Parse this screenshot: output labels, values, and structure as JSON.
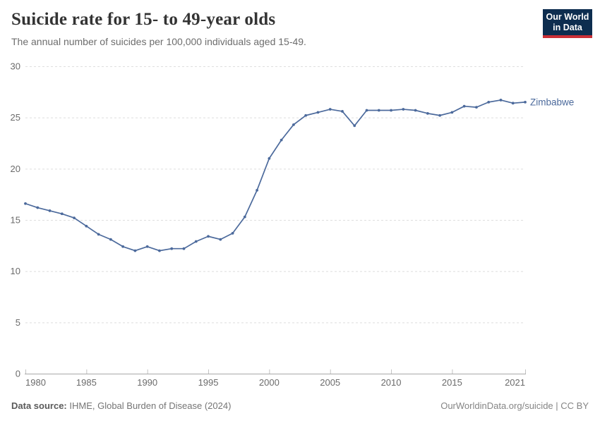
{
  "header": {
    "title": "Suicide rate for 15- to 49-year olds",
    "subtitle": "The annual number of suicides per 100,000 individuals aged 15-49.",
    "logo": {
      "line1": "Our World",
      "line2": "in Data",
      "bg_color": "#0d2d4f",
      "stripe_color": "#cb2f36"
    }
  },
  "chart_data": {
    "type": "line",
    "title": "Suicide rate for 15- to 49-year olds",
    "subtitle": "The annual number of suicides per 100,000 individuals aged 15-49.",
    "xlabel": "",
    "ylabel": "",
    "xlim": [
      1980,
      2021
    ],
    "ylim": [
      0,
      30
    ],
    "x_ticks": [
      1980,
      1985,
      1990,
      1995,
      2000,
      2005,
      2010,
      2015,
      2021
    ],
    "y_ticks": [
      0,
      5,
      10,
      15,
      20,
      25,
      30
    ],
    "grid": "horizontal-dashed",
    "legend_position": "end-of-line-label",
    "series": [
      {
        "name": "Zimbabwe",
        "color": "#4c6a9c",
        "x": [
          1980,
          1981,
          1982,
          1983,
          1984,
          1985,
          1986,
          1987,
          1988,
          1989,
          1990,
          1991,
          1992,
          1993,
          1994,
          1995,
          1996,
          1997,
          1998,
          1999,
          2000,
          2001,
          2002,
          2003,
          2004,
          2005,
          2006,
          2007,
          2008,
          2009,
          2010,
          2011,
          2012,
          2013,
          2014,
          2015,
          2016,
          2017,
          2018,
          2019,
          2020,
          2021
        ],
        "values": [
          16.6,
          16.2,
          15.9,
          15.6,
          15.2,
          14.4,
          13.6,
          13.1,
          12.4,
          12.0,
          12.4,
          12.0,
          12.2,
          12.2,
          12.9,
          13.4,
          13.1,
          13.7,
          15.3,
          17.9,
          21.0,
          22.8,
          24.3,
          25.2,
          25.5,
          25.8,
          25.6,
          24.2,
          25.7,
          25.7,
          25.7,
          25.8,
          25.7,
          25.4,
          25.2,
          25.5,
          26.1,
          26.0,
          26.5,
          26.7,
          26.4,
          26.5
        ]
      }
    ],
    "style": {
      "grid_color": "#dedede",
      "axis_color": "#a8a8a8",
      "tick_color": "#c2c2c2",
      "tick_label_color": "#6b6b6b"
    }
  },
  "footer": {
    "source_label": "Data source:",
    "source_text": " IHME, Global Burden of Disease (2024)",
    "credit": "OurWorldinData.org/suicide | CC BY"
  }
}
